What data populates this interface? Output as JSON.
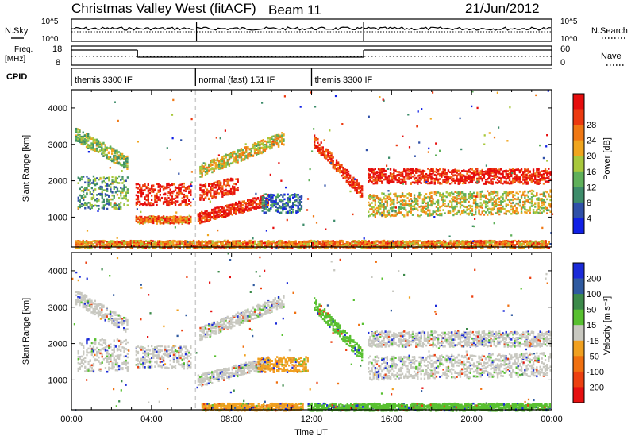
{
  "header": {
    "title": "Christmas Valley West (fitACF)",
    "beam": "Beam 11",
    "date": "21/Jun/2012"
  },
  "status_panels": {
    "nsky_label": "N.Sky",
    "nsearch_label": "N.Search",
    "noise_ticks": [
      "10^5",
      "10^0"
    ],
    "freq_label_line1": "Freq.",
    "freq_label_line2": "[MHz]",
    "freq_ticks": [
      "18",
      "8"
    ],
    "nave_label": "Nave",
    "nave_ticks": [
      "60",
      "0"
    ],
    "cpid_label": "CPID",
    "cpid_segments": [
      {
        "label": "themis 3300 IF",
        "start_hour": 0.0,
        "end_hour": 6.2
      },
      {
        "label": "normal (fast) 151 IF",
        "start_hour": 6.2,
        "end_hour": 12.0
      },
      {
        "label": "themis 3300 IF",
        "start_hour": 12.0,
        "end_hour": 24.0
      }
    ],
    "frequency_segments": [
      {
        "start_hour": 0.0,
        "end_hour": 3.3,
        "level": "high"
      },
      {
        "start_hour": 3.3,
        "end_hour": 14.6,
        "level": "low"
      },
      {
        "start_hour": 14.6,
        "end_hour": 24.0,
        "level": "high"
      }
    ]
  },
  "chart_data": [
    {
      "type": "heatmap",
      "panel": "power",
      "ylabel": "Slant Range [km]",
      "xlabel": "",
      "xlim": [
        0,
        24
      ],
      "ylim": [
        180,
        4500
      ],
      "yticks": [
        "1000",
        "2000",
        "3000",
        "4000"
      ],
      "colorbar_label": "Power [dB]",
      "colorbar_ticks": [
        "4",
        "8",
        "12",
        "16",
        "20",
        "24",
        "28"
      ],
      "colorbar_colors": [
        "#1020e6",
        "#2f50a8",
        "#3d8c6a",
        "#5fb05a",
        "#a8c83c",
        "#f0a51e",
        "#f07814",
        "#ec3a10",
        "#e60d0d"
      ],
      "echo_bands": [
        {
          "start_hour": 0.2,
          "end_hour": 2.8,
          "range_start": 3300,
          "range_end": 2500,
          "width_km": 380,
          "level": 0.45
        },
        {
          "start_hour": 0.3,
          "end_hour": 2.8,
          "range_start": 1700,
          "range_end": 1700,
          "width_km": 900,
          "level": 0.35
        },
        {
          "start_hour": 3.2,
          "end_hour": 6.0,
          "range_start": 1650,
          "range_end": 1650,
          "width_km": 620,
          "level": 0.95
        },
        {
          "start_hour": 3.2,
          "end_hour": 6.0,
          "range_start": 950,
          "range_end": 950,
          "width_km": 200,
          "level": 0.75
        },
        {
          "start_hour": 6.4,
          "end_hour": 8.3,
          "range_start": 1700,
          "range_end": 1900,
          "width_km": 450,
          "level": 0.9
        },
        {
          "start_hour": 6.3,
          "end_hour": 9.8,
          "range_start": 1000,
          "range_end": 1500,
          "width_km": 320,
          "level": 0.92
        },
        {
          "start_hour": 6.4,
          "end_hour": 10.6,
          "range_start": 2300,
          "range_end": 3200,
          "width_km": 350,
          "level": 0.55
        },
        {
          "start_hour": 9.5,
          "end_hour": 11.5,
          "range_start": 1400,
          "range_end": 1400,
          "width_km": 520,
          "level": 0.2
        },
        {
          "start_hour": 12.1,
          "end_hour": 14.5,
          "range_start": 3100,
          "range_end": 1700,
          "width_km": 350,
          "level": 0.9
        },
        {
          "start_hour": 14.8,
          "end_hour": 23.9,
          "range_start": 2150,
          "range_end": 2150,
          "width_km": 420,
          "level": 0.93
        },
        {
          "start_hour": 14.8,
          "end_hour": 23.9,
          "range_start": 1350,
          "range_end": 1450,
          "width_km": 650,
          "level": 0.55
        },
        {
          "start_hour": 0.2,
          "end_hour": 23.9,
          "range_start": 280,
          "range_end": 280,
          "width_km": 200,
          "level": 0.7
        }
      ]
    },
    {
      "type": "heatmap",
      "panel": "velocity",
      "ylabel": "Slant Range [km]",
      "xlabel": "Time UT",
      "xlim": [
        0,
        24
      ],
      "ylim": [
        180,
        4500
      ],
      "yticks": [
        "1000",
        "2000",
        "3000",
        "4000"
      ],
      "xticks": [
        "00:00",
        "04:00",
        "08:00",
        "12:00",
        "16:00",
        "20:00",
        "00:00"
      ],
      "colorbar_label": "Velocity [m s⁻¹]",
      "colorbar_ticks": [
        "200",
        "100",
        "50",
        "15",
        "-15",
        "-50",
        "-100",
        "-200"
      ],
      "colorbar_colors": [
        "#1a2ad8",
        "#2f5aa0",
        "#3c8a4a",
        "#58c030",
        "#c8c8c0",
        "#f0a020",
        "#f07010",
        "#ec4010",
        "#e61010"
      ],
      "echo_bands": [
        {
          "start_hour": 0.2,
          "end_hour": 2.8,
          "range_start": 3300,
          "range_end": 2500,
          "width_km": 380,
          "cls": "grey"
        },
        {
          "start_hour": 0.3,
          "end_hour": 2.8,
          "range_start": 1700,
          "range_end": 1700,
          "width_km": 900,
          "cls": "grey"
        },
        {
          "start_hour": 3.2,
          "end_hour": 6.0,
          "range_start": 1650,
          "range_end": 1650,
          "width_km": 620,
          "cls": "grey"
        },
        {
          "start_hour": 6.4,
          "end_hour": 10.6,
          "range_start": 2300,
          "range_end": 3200,
          "width_km": 350,
          "cls": "grey"
        },
        {
          "start_hour": 6.3,
          "end_hour": 9.8,
          "range_start": 1000,
          "range_end": 1500,
          "width_km": 320,
          "cls": "grey"
        },
        {
          "start_hour": 9.3,
          "end_hour": 11.8,
          "range_start": 1450,
          "range_end": 1450,
          "width_km": 420,
          "cls": "orange"
        },
        {
          "start_hour": 12.1,
          "end_hour": 14.5,
          "range_start": 3100,
          "range_end": 1700,
          "width_km": 350,
          "cls": "green"
        },
        {
          "start_hour": 14.8,
          "end_hour": 23.9,
          "range_start": 2150,
          "range_end": 2150,
          "width_km": 420,
          "cls": "grey"
        },
        {
          "start_hour": 14.8,
          "end_hour": 23.9,
          "range_start": 1350,
          "range_end": 1450,
          "width_km": 650,
          "cls": "grey"
        },
        {
          "start_hour": 6.5,
          "end_hour": 11.6,
          "range_start": 280,
          "range_end": 280,
          "width_km": 200,
          "cls": "orange"
        },
        {
          "start_hour": 11.8,
          "end_hour": 23.9,
          "range_start": 280,
          "range_end": 280,
          "width_km": 200,
          "cls": "green"
        }
      ]
    }
  ]
}
